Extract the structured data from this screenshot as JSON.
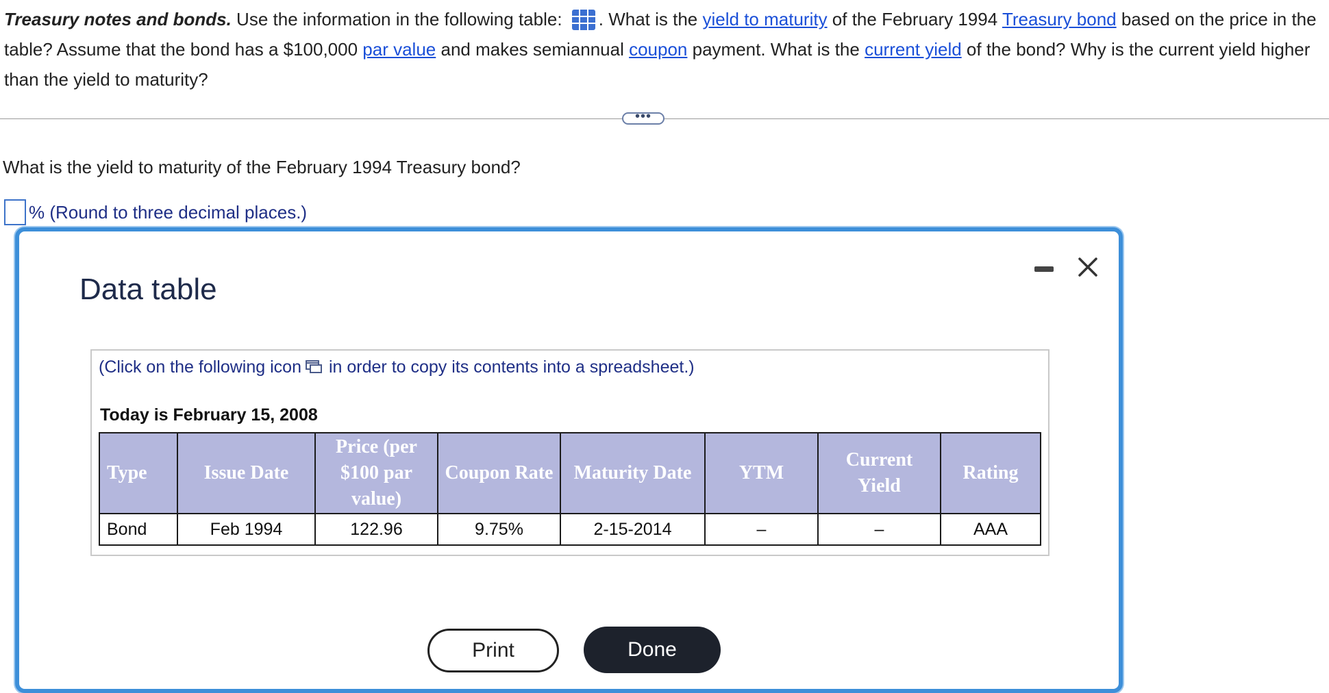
{
  "question": {
    "title": "Treasury notes and bonds.",
    "part1": " Use the information in the following table: ",
    "part2": ". What is the ",
    "link_ytm": "yield to maturity",
    "part3": " of the February 1994 ",
    "link_treasury_bond": "Treasury bond",
    "part4": " based on the price in the table? Assume that the bond has a $100,000 ",
    "link_par_value": "par value",
    "part5": " and makes semiannual ",
    "link_coupon": "coupon",
    "part6": " payment. What is the ",
    "link_current_yield": "current yield",
    "part7": " of the bond? Why is the current yield higher than the yield to maturity?",
    "table_icon": "table-grid-icon"
  },
  "expand_button": {
    "label": "•••"
  },
  "sub_question": "What is the yield to maturity of the February 1994 Treasury bond?",
  "answer": {
    "value": "",
    "suffix": "% (Round to three decimal places.)"
  },
  "dialog": {
    "title": "Data table",
    "minimize_icon": "minimize-icon",
    "close_icon": "close-icon",
    "copy_text_before": "(Click on the following icon",
    "copy_text_after": "in order to copy its contents into a spreadsheet.)",
    "copy_icon": "copy-icon",
    "today": "Today is February 15, 2008",
    "table": {
      "headers": [
        "Type",
        "Issue Date",
        "Price (per $100 par value)",
        "Coupon Rate",
        "Maturity Date",
        "YTM",
        "Current Yield",
        "Rating"
      ],
      "rows": [
        [
          "Bond",
          "Feb 1994",
          "122.96",
          "9.75%",
          "2-15-2014",
          "–",
          "–",
          "AAA"
        ]
      ]
    },
    "print_label": "Print",
    "done_label": "Done"
  },
  "colors": {
    "link": "#1a4fd8",
    "header_bg": "#b4b7dd",
    "dialog_border": "#3d8fd9",
    "done_bg": "#1d222c"
  }
}
